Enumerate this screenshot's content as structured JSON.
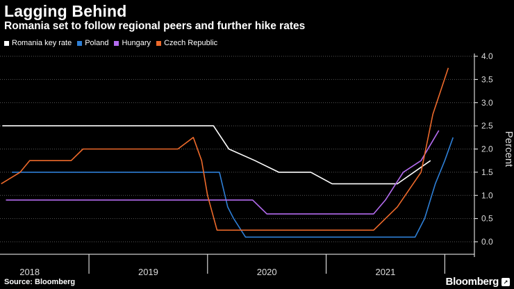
{
  "header": {
    "title": "Lagging Behind",
    "subtitle": "Romania set to follow regional peers and further hike rates"
  },
  "footer": {
    "source": "Source: Bloomberg",
    "brand": "Bloomberg",
    "brand_icon": "↗"
  },
  "chart_data": {
    "type": "line",
    "title": "Lagging Behind",
    "subtitle": "Romania set to follow regional peers and further hike rates",
    "ylabel": "Percent",
    "ylim": [
      0,
      4.0
    ],
    "yticks": [
      "0.0",
      "0.5",
      "1.0",
      "1.5",
      "2.0",
      "2.5",
      "3.0",
      "3.5",
      "4.0"
    ],
    "xlim": [
      2017.75,
      2021.75
    ],
    "x_labels": [
      {
        "label": "2018",
        "x": 2018.0
      },
      {
        "label": "2019",
        "x": 2019.0
      },
      {
        "label": "2020",
        "x": 2020.0
      },
      {
        "label": "2021",
        "x": 2021.0
      }
    ],
    "x_separators": [
      2018.5,
      2019.5,
      2020.5,
      2021.5
    ],
    "legend_position": "top-left",
    "series": [
      {
        "name": "Romania key rate",
        "color": "#ffffff",
        "points": [
          [
            2017.77,
            2.5
          ],
          [
            2019.55,
            2.5
          ],
          [
            2019.68,
            2.0
          ],
          [
            2019.9,
            1.75
          ],
          [
            2020.1,
            1.5
          ],
          [
            2020.37,
            1.5
          ],
          [
            2020.55,
            1.25
          ],
          [
            2020.95,
            1.25
          ],
          [
            2021.1,
            1.25
          ],
          [
            2021.38,
            1.75
          ]
        ]
      },
      {
        "name": "Poland",
        "color": "#2e7fd6",
        "points": [
          [
            2017.85,
            1.5
          ],
          [
            2019.6,
            1.5
          ],
          [
            2019.67,
            0.75
          ],
          [
            2019.72,
            0.5
          ],
          [
            2019.82,
            0.1
          ],
          [
            2021.05,
            0.1
          ],
          [
            2021.25,
            0.1
          ],
          [
            2021.33,
            0.5
          ],
          [
            2021.42,
            1.25
          ],
          [
            2021.5,
            1.75
          ],
          [
            2021.57,
            2.25
          ]
        ]
      },
      {
        "name": "Hungary",
        "color": "#b46cf0",
        "points": [
          [
            2017.8,
            0.9
          ],
          [
            2019.6,
            0.9
          ],
          [
            2019.88,
            0.9
          ],
          [
            2020.0,
            0.6
          ],
          [
            2020.9,
            0.6
          ],
          [
            2021.0,
            0.9
          ],
          [
            2021.15,
            1.5
          ],
          [
            2021.3,
            1.75
          ],
          [
            2021.45,
            2.4
          ]
        ]
      },
      {
        "name": "Czech Republic",
        "color": "#ee6a2b",
        "points": [
          [
            2017.76,
            1.25
          ],
          [
            2017.92,
            1.5
          ],
          [
            2018.0,
            1.75
          ],
          [
            2018.35,
            1.75
          ],
          [
            2018.45,
            2.0
          ],
          [
            2019.25,
            2.0
          ],
          [
            2019.38,
            2.25
          ],
          [
            2019.45,
            1.75
          ],
          [
            2019.5,
            1.0
          ],
          [
            2019.58,
            0.25
          ],
          [
            2020.9,
            0.25
          ],
          [
            2021.1,
            0.75
          ],
          [
            2021.3,
            1.5
          ],
          [
            2021.4,
            2.75
          ],
          [
            2021.53,
            3.75
          ]
        ]
      }
    ]
  }
}
